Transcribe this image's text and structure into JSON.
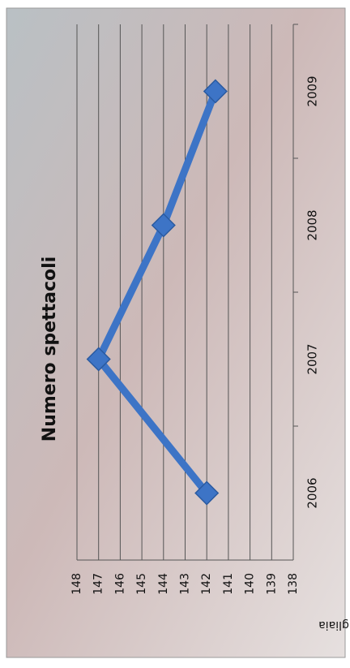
{
  "chart_data": {
    "type": "line",
    "title": "Numero spettacoli",
    "y_label": "Migliaia",
    "categories": [
      "2006",
      "2007",
      "2008",
      "2009"
    ],
    "series": [
      {
        "name": "Numero spettacoli",
        "color": "#3d74c6",
        "values": [
          142,
          147,
          144,
          141.6
        ]
      }
    ],
    "ylim": [
      138,
      148
    ],
    "yticks": [
      138,
      139,
      140,
      141,
      142,
      143,
      144,
      145,
      146,
      147,
      148
    ],
    "grid": true
  }
}
